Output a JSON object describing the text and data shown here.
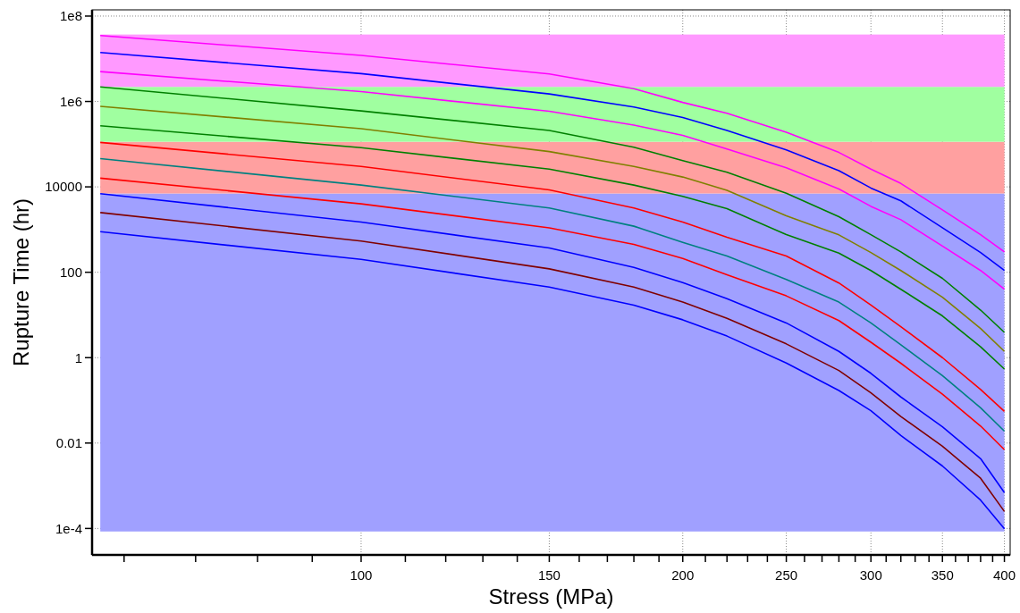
{
  "chart_data": {
    "type": "line",
    "xlabel": "Stress (MPa)",
    "ylabel": "Rupture Time (hr)",
    "log": "xy",
    "grid": true,
    "marker": "none",
    "line_style": "solid",
    "x": [
      57,
      100,
      150,
      180,
      200,
      220,
      250,
      280,
      300,
      320,
      350,
      380,
      400
    ],
    "xlim": [
      56,
      405
    ],
    "ylim": [
      2.4e-05,
      140000000.0
    ],
    "xticks": [
      {
        "value": 60,
        "label": null
      },
      {
        "value": 70,
        "label": null
      },
      {
        "value": 80,
        "label": null
      },
      {
        "value": 90,
        "label": null
      },
      100,
      {
        "value": 110,
        "label": null
      },
      {
        "value": 120,
        "label": null
      },
      {
        "value": 130,
        "label": null
      },
      {
        "value": 140,
        "label": null
      },
      150,
      {
        "value": 160,
        "label": null
      },
      {
        "value": 170,
        "label": null
      },
      {
        "value": 180,
        "label": null
      },
      {
        "value": 190,
        "label": null
      },
      200,
      {
        "value": 210,
        "label": null
      },
      {
        "value": 220,
        "label": null
      },
      {
        "value": 230,
        "label": null
      },
      {
        "value": 240,
        "label": null
      },
      250,
      {
        "value": 260,
        "label": null
      },
      {
        "value": 270,
        "label": null
      },
      {
        "value": 280,
        "label": null
      },
      {
        "value": 290,
        "label": null
      },
      300,
      {
        "value": 310,
        "label": null
      },
      {
        "value": 320,
        "label": null
      },
      {
        "value": 330,
        "label": null
      },
      {
        "value": 340,
        "label": null
      },
      350,
      {
        "value": 360,
        "label": null
      },
      {
        "value": 370,
        "label": null
      },
      {
        "value": 380,
        "label": null
      },
      {
        "value": 390,
        "label": null
      },
      400
    ],
    "yticks": [
      {
        "value": 0.0001,
        "label": "1e-4"
      },
      0.01,
      1,
      100,
      10000,
      {
        "value": 1000000,
        "label": "1e6"
      },
      {
        "value": 100000000,
        "label": "1e8"
      }
    ],
    "bands": [
      {
        "axis": "y",
        "from": 8.5e-05,
        "to": 7000,
        "color": "#a0a0ff"
      },
      {
        "axis": "y",
        "from": 7000,
        "to": 114000,
        "color": "#ffa0a0"
      },
      {
        "axis": "y",
        "from": 114000,
        "to": 2200000,
        "color": "#a0ffa0"
      },
      {
        "axis": "y",
        "from": 2200000,
        "to": 37000000,
        "color": "#ff99ff"
      }
    ],
    "series": [
      {
        "color": "#ff00ff",
        "values": [
          35000000.0,
          12000000.0,
          4400000.0,
          2000000.0,
          950000.0,
          530000.0,
          190000.0,
          64000.0,
          26000.0,
          12000.0,
          2900,
          760,
          300
        ]
      },
      {
        "color": "#0000ff",
        "values": [
          14000000.0,
          4500000.0,
          1500000.0,
          740000.0,
          420000.0,
          210000.0,
          73000.0,
          24000.0,
          9400,
          4700,
          1100,
          290,
          110
        ]
      },
      {
        "color": "#ff00ff",
        "values": [
          5000000.0,
          1700000.0,
          590000.0,
          280000.0,
          160000.0,
          77000.0,
          28000.0,
          8900,
          3500,
          1700,
          410,
          110,
          40
        ]
      },
      {
        "color": "#008000",
        "values": [
          2200000.0,
          600000.0,
          210000.0,
          85000.0,
          41000.0,
          22000.0,
          7100,
          2000,
          760,
          300,
          72,
          13,
          3.9
        ]
      },
      {
        "color": "#808000",
        "values": [
          770000.0,
          230000.0,
          67000.0,
          30000.0,
          17000.0,
          8300,
          2100,
          750,
          290,
          110,
          26,
          4.8,
          1.4
        ]
      },
      {
        "color": "#008000",
        "values": [
          270000.0,
          83000.0,
          26000.0,
          11000.0,
          6000,
          3100,
          760,
          280,
          110,
          40,
          9.5,
          1.8,
          0.54
        ]
      },
      {
        "color": "#ff0000",
        "values": [
          110000.0,
          30000.0,
          8500,
          3200,
          1500,
          660,
          240,
          56,
          17,
          5.3,
          1.0,
          0.18,
          0.055
        ]
      },
      {
        "color": "#008080",
        "values": [
          46000.0,
          11000.0,
          3200,
          1200,
          500,
          240,
          68,
          20,
          6.5,
          2.0,
          0.38,
          0.067,
          0.019
        ]
      },
      {
        "color": "#ff0000",
        "values": [
          16000.0,
          4000,
          1100,
          450,
          210,
          87,
          28,
          7.4,
          2.3,
          0.74,
          0.14,
          0.025,
          0.007
        ]
      },
      {
        "color": "#0000ff",
        "values": [
          6900,
          1500,
          370,
          130,
          57,
          24,
          6.5,
          1.4,
          0.43,
          0.12,
          0.024,
          0.0043,
          0.00069
        ]
      },
      {
        "color": "#800000",
        "values": [
          2500,
          540,
          120,
          45,
          20,
          8.3,
          2.1,
          0.5,
          0.15,
          0.042,
          0.0084,
          0.0015,
          0.00025
        ]
      },
      {
        "color": "#0000ff",
        "values": [
          890,
          200,
          45,
          17,
          7.7,
          3.2,
          0.75,
          0.17,
          0.057,
          0.015,
          0.0029,
          0.00046,
          9.8e-05
        ]
      }
    ]
  }
}
